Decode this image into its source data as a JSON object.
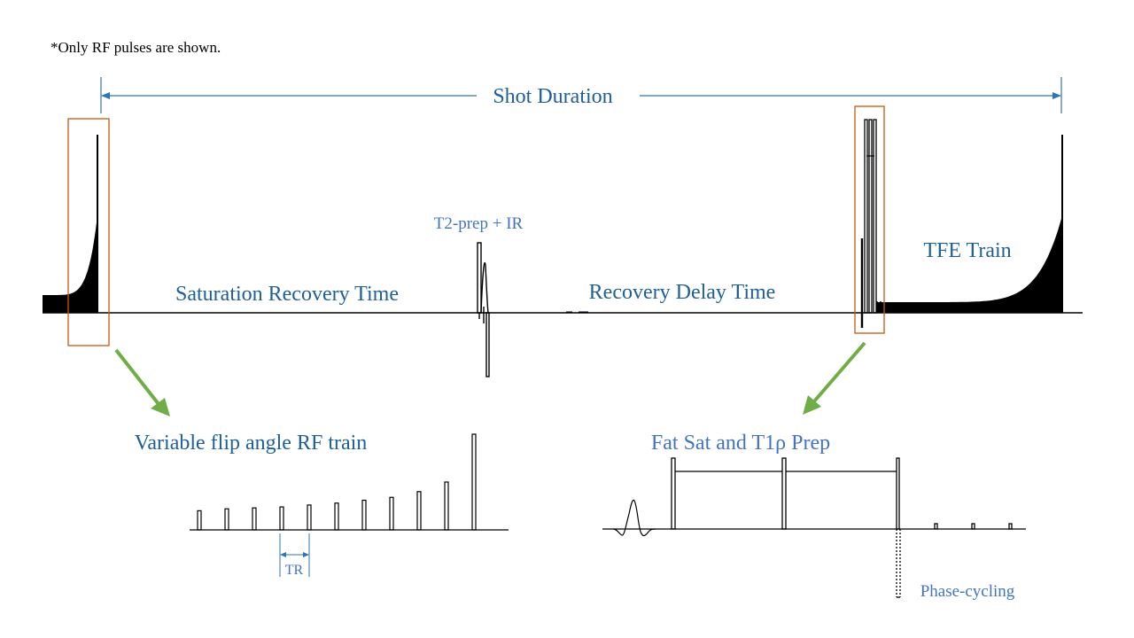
{
  "note": "*Only  RF pulses are shown.",
  "labels": {
    "shot_duration": "Shot Duration",
    "t2prep_ir": "T2-prep + IR",
    "tfe_train": "TFE Train",
    "saturation_recovery": "Saturation Recovery  Time",
    "recovery_delay": "Recovery  Delay Time",
    "vfa_train": "Variable flip angle RF train",
    "fatsat_t1rho": "Fat Sat and T1ρ Prep",
    "tr": "TR",
    "phase_cycling": "Phase-cycling"
  },
  "vfa_relative_amplitudes": [
    0.2,
    0.22,
    0.23,
    0.24,
    0.26,
    0.28,
    0.31,
    0.34,
    0.4,
    0.5,
    1.0
  ],
  "colors": {
    "dark_blue_text": "#1f5f99",
    "blue_text": "#4472c4",
    "arrow_line": "#2e75b6",
    "orange_box": "#c55a11",
    "green_arrow": "#70ad47",
    "waveform": "#000000"
  }
}
